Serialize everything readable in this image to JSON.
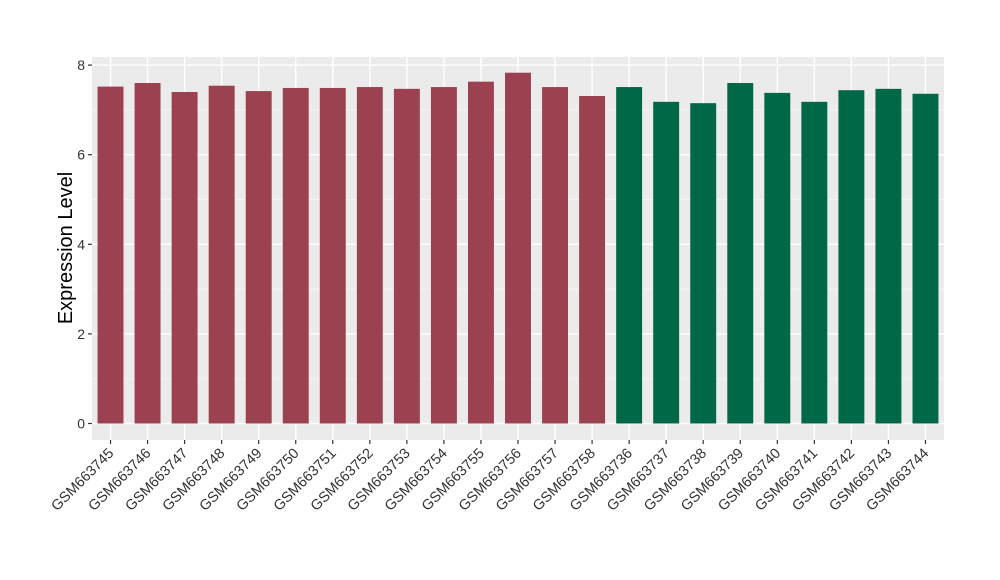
{
  "chart_data": {
    "type": "bar",
    "title": "",
    "xlabel": "",
    "ylabel": "Expression Level",
    "ylim": [
      0,
      8.3
    ],
    "yticks": [
      0,
      2,
      4,
      6,
      8
    ],
    "grid": true,
    "legend": "none",
    "categories": [
      "GSM663745",
      "GSM663746",
      "GSM663747",
      "GSM663748",
      "GSM663749",
      "GSM663750",
      "GSM663751",
      "GSM663752",
      "GSM663753",
      "GSM663754",
      "GSM663755",
      "GSM663756",
      "GSM663757",
      "GSM663758",
      "GSM663736",
      "GSM663737",
      "GSM663738",
      "GSM663739",
      "GSM663740",
      "GSM663741",
      "GSM663742",
      "GSM663743",
      "GSM663744"
    ],
    "values": [
      7.52,
      7.6,
      7.4,
      7.54,
      7.42,
      7.49,
      7.49,
      7.51,
      7.47,
      7.51,
      7.63,
      7.83,
      7.51,
      7.31,
      7.51,
      7.18,
      7.15,
      7.6,
      7.38,
      7.18,
      7.44,
      7.47,
      7.36
    ],
    "groups": [
      "a",
      "a",
      "a",
      "a",
      "a",
      "a",
      "a",
      "a",
      "a",
      "a",
      "a",
      "a",
      "a",
      "a",
      "b",
      "b",
      "b",
      "b",
      "b",
      "b",
      "b",
      "b",
      "b"
    ],
    "colors": {
      "a": "#9b4150",
      "b": "#006747",
      "panel_background": "#ebebeb",
      "grid_major": "#ffffff",
      "grid_minor": "#f5f5f5",
      "axis_text": "#333333"
    }
  }
}
